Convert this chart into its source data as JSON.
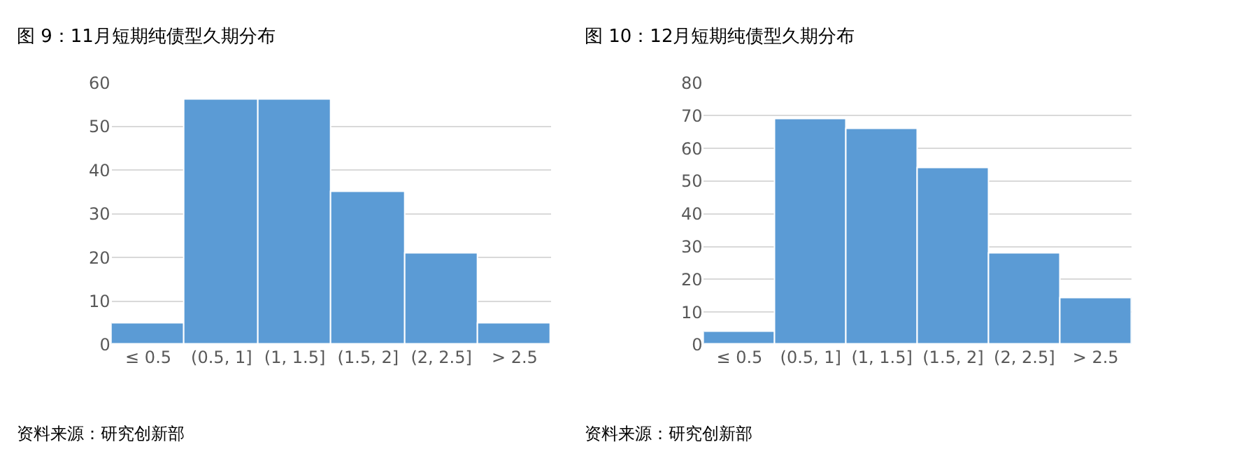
{
  "chart_data": [
    {
      "type": "bar",
      "title": "图 9：11月短期纯债型久期分布",
      "categories": [
        "≤ 0.5",
        "(0.5, 1]",
        "(1, 1.5]",
        "(1.5, 2]",
        "(2, 2.5]",
        "> 2.5"
      ],
      "values": [
        5,
        56,
        56,
        35,
        21,
        5
      ],
      "color": "#5b9bd5",
      "ylim": [
        0,
        60
      ],
      "yticks": [
        0,
        10,
        20,
        30,
        40,
        50,
        60
      ],
      "grid": "y",
      "annotations": [
        "资料来源：研究创新部"
      ]
    },
    {
      "type": "bar",
      "title": "图 10：12月短期纯债型久期分布",
      "categories": [
        "≤ 0.5",
        "(0.5, 1]",
        "(1, 1.5]",
        "(1.5, 2]",
        "(2, 2.5]",
        "> 2.5"
      ],
      "values": [
        4,
        69,
        66,
        54,
        28,
        14
      ],
      "color": "#5b9bd5",
      "ylim": [
        0,
        80
      ],
      "yticks": [
        0,
        10,
        20,
        30,
        40,
        50,
        60,
        70,
        80
      ],
      "grid": "y",
      "annotations": [
        "资料来源：研究创新部"
      ]
    }
  ]
}
